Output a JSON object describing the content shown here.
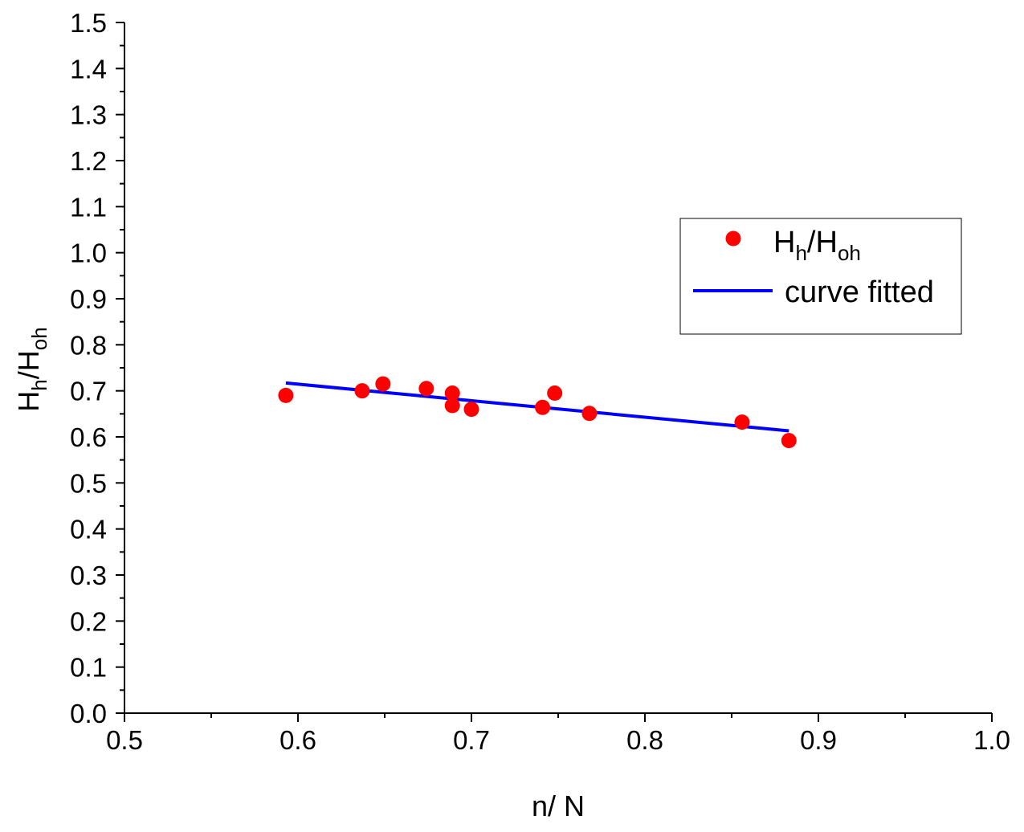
{
  "chart_data": {
    "type": "scatter",
    "title": "",
    "xlabel": "n/ N",
    "ylabel": {
      "main_1": "H",
      "sub_1": "h",
      "sep": "/",
      "main_2": "H",
      "sub_2": "oh"
    },
    "xlim": [
      0.5,
      1.0
    ],
    "ylim": [
      0.0,
      1.5
    ],
    "x_ticks": [
      "0.5",
      "0.6",
      "0.7",
      "0.8",
      "0.9",
      "1.0"
    ],
    "y_ticks": [
      "0.0",
      "0.1",
      "0.2",
      "0.3",
      "0.4",
      "0.5",
      "0.6",
      "0.7",
      "0.8",
      "0.9",
      "1.0",
      "1.1",
      "1.2",
      "1.3",
      "1.4",
      "1.5"
    ],
    "grid": false,
    "legend_position": "top-right",
    "series": [
      {
        "name": {
          "main_1": "H",
          "sub_1": "h",
          "sep": "/",
          "main_2": "H",
          "sub_2": "oh"
        },
        "kind": "scatter",
        "color": "#ff0000",
        "points": [
          {
            "x": 0.593,
            "y": 0.69
          },
          {
            "x": 0.637,
            "y": 0.7
          },
          {
            "x": 0.649,
            "y": 0.715
          },
          {
            "x": 0.674,
            "y": 0.705
          },
          {
            "x": 0.689,
            "y": 0.695
          },
          {
            "x": 0.689,
            "y": 0.668
          },
          {
            "x": 0.7,
            "y": 0.66
          },
          {
            "x": 0.741,
            "y": 0.664
          },
          {
            "x": 0.748,
            "y": 0.695
          },
          {
            "x": 0.768,
            "y": 0.651
          },
          {
            "x": 0.856,
            "y": 0.632
          },
          {
            "x": 0.883,
            "y": 0.592
          }
        ]
      },
      {
        "name": "curve fitted",
        "kind": "line",
        "color": "#0000ff",
        "points": [
          {
            "x": 0.593,
            "y": 0.717
          },
          {
            "x": 0.883,
            "y": 0.613
          }
        ]
      }
    ]
  }
}
